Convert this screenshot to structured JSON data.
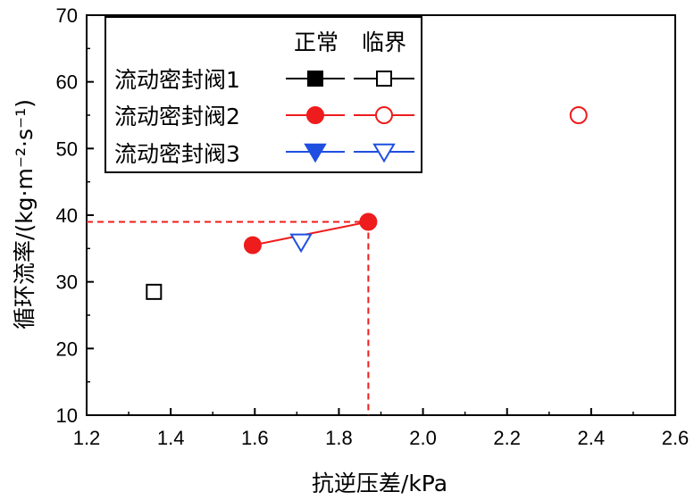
{
  "chart_data": {
    "type": "scatter",
    "title": "",
    "xlabel": "抗逆压差/kPa",
    "ylabel": "循环流率/(kg·m⁻²·s⁻¹)",
    "xlim": [
      1.2,
      2.6
    ],
    "ylim": [
      10,
      70
    ],
    "xticks": [
      "1.2",
      "1.4",
      "1.6",
      "1.8",
      "2.0",
      "2.2",
      "2.4",
      "2.6"
    ],
    "yticks": [
      "10",
      "20",
      "30",
      "40",
      "50",
      "60",
      "70"
    ],
    "legend": {
      "placement": "top-left",
      "col_headers": [
        "正常",
        "临界"
      ],
      "rows": [
        "流动密封阀1",
        "流动密封阀2",
        "流动密封阀3"
      ]
    },
    "series": [
      {
        "name": "流动密封阀1",
        "state": "正常",
        "marker": "square",
        "filled": true,
        "color": "#000000",
        "x": [],
        "y": []
      },
      {
        "name": "流动密封阀1",
        "state": "临界",
        "marker": "square",
        "filled": false,
        "color": "#000000",
        "x": [
          1.36
        ],
        "y": [
          28.5
        ]
      },
      {
        "name": "流动密封阀2",
        "state": "正常",
        "marker": "circle",
        "filled": true,
        "color": "#ee1c1c",
        "x": [
          1.595,
          1.87
        ],
        "y": [
          35.5,
          39.0
        ]
      },
      {
        "name": "流动密封阀2",
        "state": "临界",
        "marker": "circle",
        "filled": false,
        "color": "#ee1c1c",
        "x": [
          2.37
        ],
        "y": [
          55.0
        ]
      },
      {
        "name": "流动密封阀3",
        "state": "正常",
        "marker": "triangle-down",
        "filled": true,
        "color": "#1f4fe0",
        "x": [],
        "y": []
      },
      {
        "name": "流动密封阀3",
        "state": "临界",
        "marker": "triangle-down",
        "filled": false,
        "color": "#1f4fe0",
        "x": [
          1.71
        ],
        "y": [
          36.0
        ]
      }
    ],
    "reference_point": {
      "x": 1.87,
      "y": 39.0,
      "color": "#ee1c1c"
    },
    "grid": false
  }
}
